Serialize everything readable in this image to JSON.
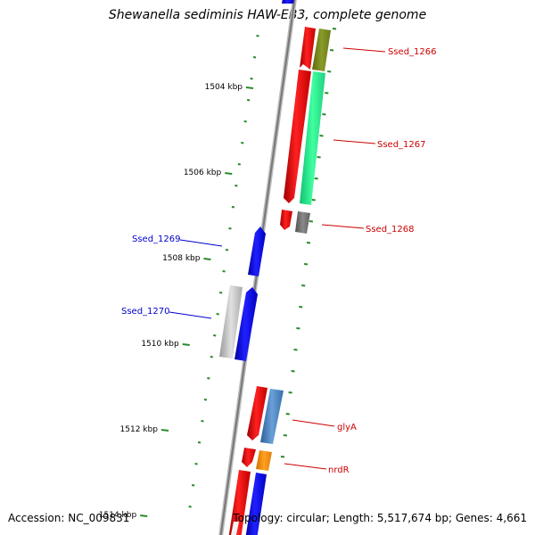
{
  "title": "Shewanella sediminis HAW-EB3, complete genome",
  "footer": {
    "accession": "Accession: NC_009831",
    "topology": "Topology: circular; Length: 5,517,674 bp; Genes: 4,661"
  },
  "kbp_ticks": [
    {
      "label": "1504 kbp",
      "kbp": 1504
    },
    {
      "label": "1506 kbp",
      "kbp": 1506
    },
    {
      "label": "1508 kbp",
      "kbp": 1508
    },
    {
      "label": "1510 kbp",
      "kbp": 1510
    },
    {
      "label": "1512 kbp",
      "kbp": 1512
    },
    {
      "label": "1514 kbp",
      "kbp": 1514
    }
  ],
  "gene_labels": [
    {
      "name": "Ssed_1266",
      "side": "right",
      "color": "#cc0000"
    },
    {
      "name": "Ssed_1267",
      "side": "right",
      "color": "#cc0000"
    },
    {
      "name": "Ssed_1268",
      "side": "right",
      "color": "#cc0000"
    },
    {
      "name": "Ssed_1269",
      "side": "left",
      "color": "#0000cc"
    },
    {
      "name": "Ssed_1270",
      "side": "left",
      "color": "#0000cc"
    },
    {
      "name": "glyA",
      "side": "right",
      "color": "#cc0000"
    },
    {
      "name": "nrdR",
      "side": "right",
      "color": "#cc0000"
    }
  ],
  "colors": {
    "forward_strand": "#ff0000",
    "reverse_strand": "#0000ff",
    "backbone": "#888888",
    "gc_ticks": "#2a8a2a"
  }
}
